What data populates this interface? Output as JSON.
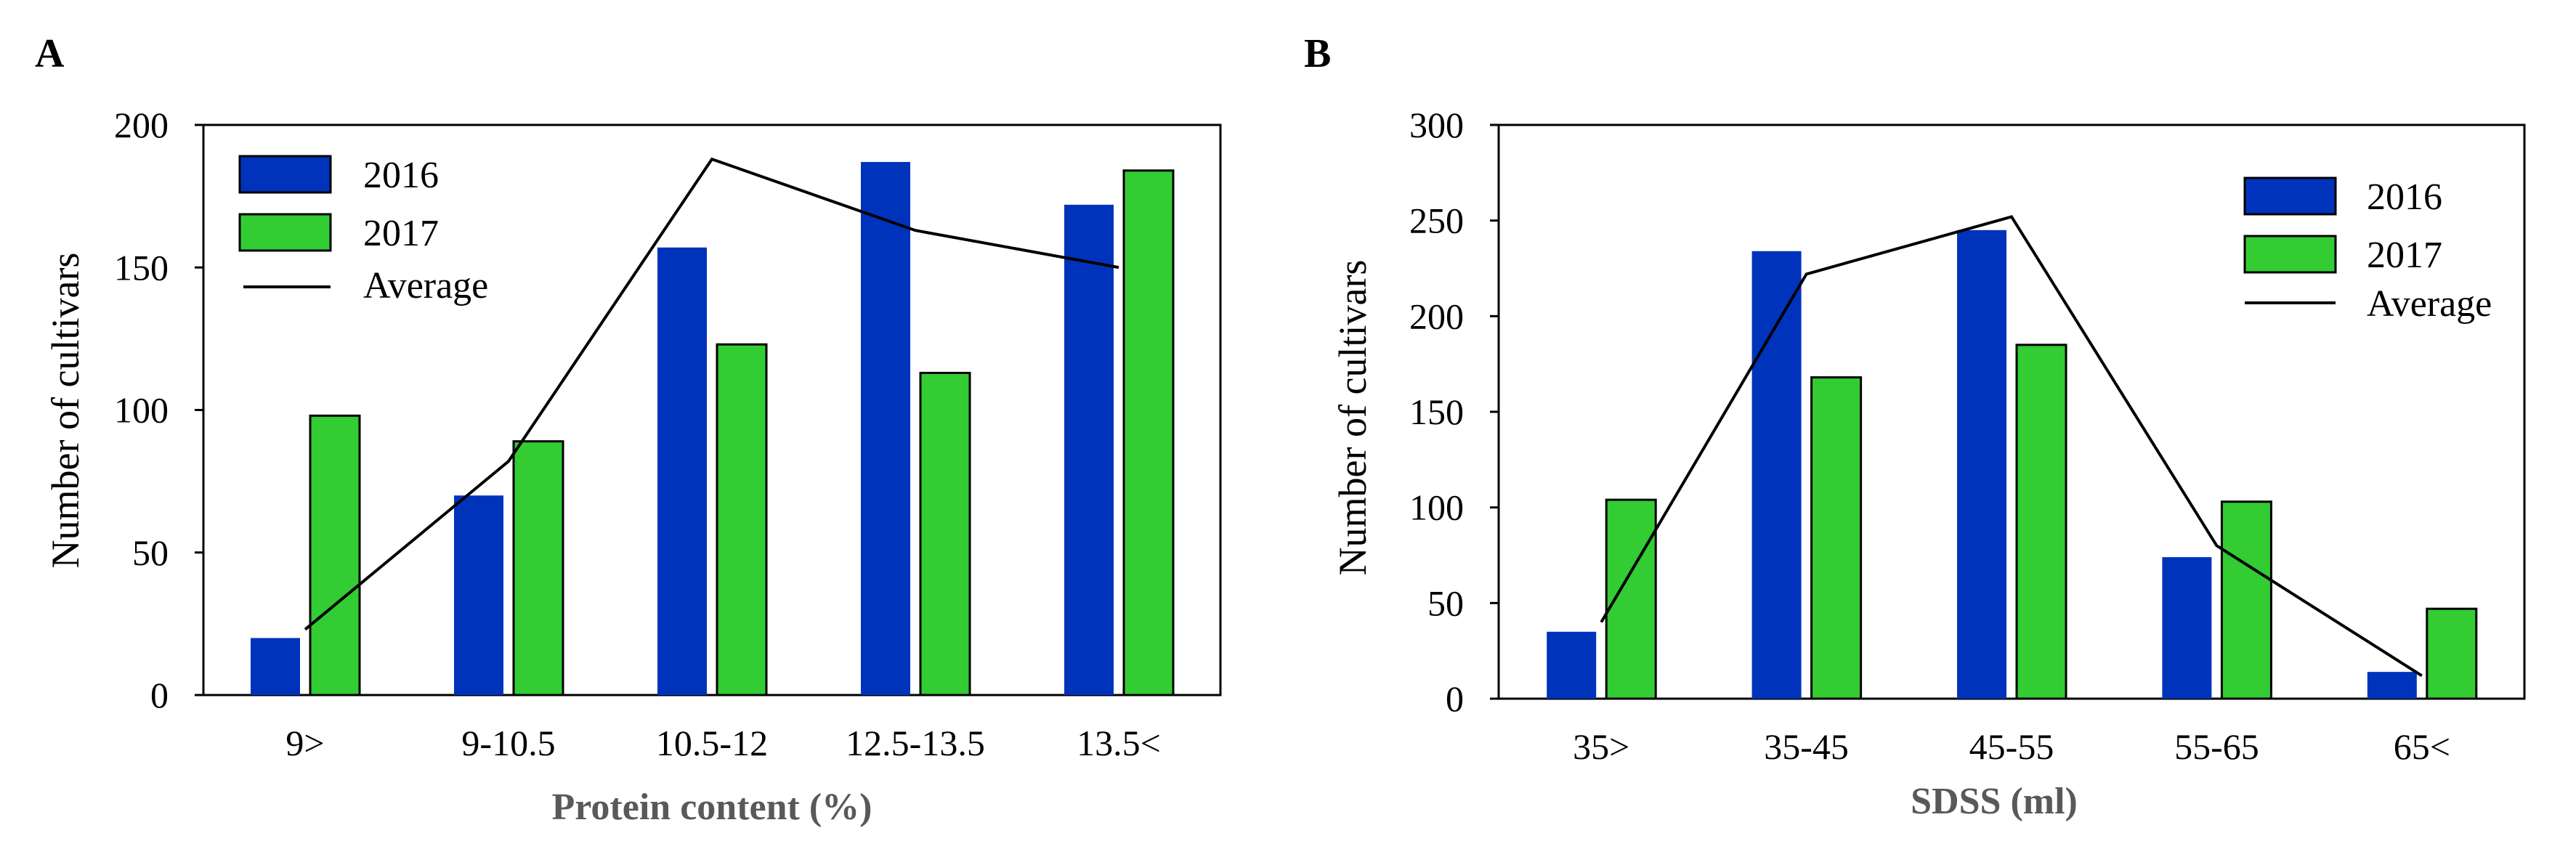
{
  "colors": {
    "2016": "#0033bb",
    "2017": "#33cc33",
    "average": "#000000",
    "bar_outline": "#000000"
  },
  "chart_data": [
    {
      "type": "bar",
      "panel": "A",
      "categories": [
        "9>",
        "9-10.5",
        "10.5-12",
        "12.5-13.5",
        "13.5<"
      ],
      "series": [
        {
          "name": "2016",
          "values": [
            20,
            70,
            157,
            187,
            172
          ]
        },
        {
          "name": "2017",
          "values": [
            98,
            89,
            123,
            113,
            184
          ]
        }
      ],
      "line": {
        "name": "Average",
        "values": [
          23,
          82,
          188,
          163,
          150
        ]
      },
      "xlabel": "Protein content (%)",
      "ylabel": "Number of cultivars",
      "ylim": [
        0,
        200
      ],
      "yticks": [
        0,
        50,
        100,
        150,
        200
      ],
      "legend_position": "top-left",
      "grid": false
    },
    {
      "type": "bar",
      "panel": "B",
      "categories": [
        "35>",
        "35-45",
        "45-55",
        "55-65",
        "65<"
      ],
      "series": [
        {
          "name": "2016",
          "values": [
            35,
            234,
            245,
            74,
            14
          ]
        },
        {
          "name": "2017",
          "values": [
            104,
            168,
            185,
            103,
            47
          ]
        }
      ],
      "line": {
        "name": "Average",
        "values": [
          40,
          222,
          252,
          80,
          12
        ]
      },
      "xlabel": "SDSS (ml)",
      "ylabel": "Number of cultivars",
      "ylim": [
        0,
        300
      ],
      "yticks": [
        0,
        50,
        100,
        150,
        200,
        250,
        300
      ],
      "legend_position": "top-right",
      "grid": false
    }
  ]
}
